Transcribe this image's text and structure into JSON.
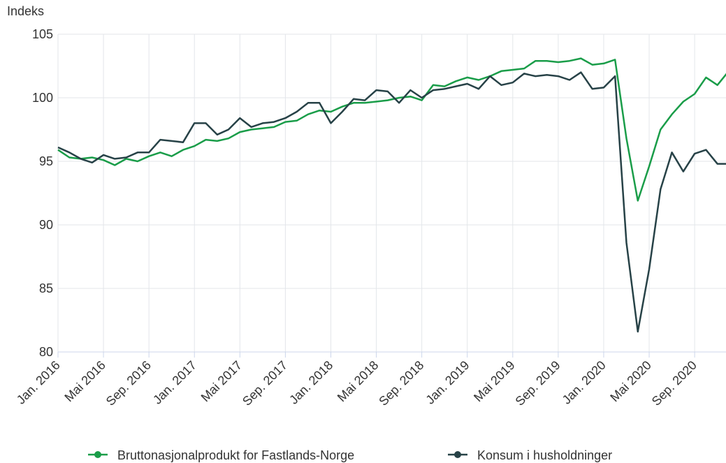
{
  "chart_data": {
    "type": "line",
    "y_label": "Indeks",
    "categories": [
      "Jan. 2016",
      null,
      null,
      null,
      "Mai 2016",
      null,
      null,
      null,
      "Sep. 2016",
      null,
      null,
      null,
      "Jan. 2017",
      null,
      null,
      null,
      "Mai 2017",
      null,
      null,
      null,
      "Sep. 2017",
      null,
      null,
      null,
      "Jan. 2018",
      null,
      null,
      null,
      "Mai 2018",
      null,
      null,
      null,
      "Sep. 2018",
      null,
      null,
      null,
      "Jan. 2019",
      null,
      null,
      null,
      "Mai 2019",
      null,
      null,
      null,
      "Sep. 2019",
      null,
      null,
      null,
      "Jan. 2020",
      null,
      null,
      null,
      "Mai 2020",
      null,
      null,
      null,
      "Sep. 2020",
      null,
      null,
      null
    ],
    "series": [
      {
        "name": "Bruttonasjonalprodukt for Fastlands-Norge",
        "color": "#1a9d49",
        "values": [
          95.9,
          95.3,
          95.2,
          95.3,
          95.1,
          94.7,
          95.2,
          95.0,
          95.4,
          95.7,
          95.4,
          95.9,
          96.2,
          96.7,
          96.6,
          96.8,
          97.3,
          97.5,
          97.6,
          97.7,
          98.1,
          98.2,
          98.7,
          99.0,
          98.9,
          99.3,
          99.6,
          99.6,
          99.7,
          99.8,
          100.0,
          100.1,
          99.8,
          101.0,
          100.9,
          101.3,
          101.6,
          101.4,
          101.7,
          102.1,
          102.2,
          102.3,
          102.9,
          102.9,
          102.8,
          102.9,
          103.1,
          102.6,
          102.7,
          103.0,
          96.8,
          91.9,
          94.6,
          97.5,
          98.7,
          99.7,
          100.3,
          101.6,
          101.0,
          102.1
        ]
      },
      {
        "name": "Konsum i husholdninger",
        "color": "#274247",
        "values": [
          96.1,
          95.7,
          95.2,
          94.9,
          95.5,
          95.2,
          95.3,
          95.7,
          95.7,
          96.7,
          96.6,
          96.5,
          98.0,
          98.0,
          97.1,
          97.5,
          98.4,
          97.7,
          98.0,
          98.1,
          98.4,
          98.9,
          99.6,
          99.6,
          98.0,
          98.9,
          99.9,
          99.8,
          100.6,
          100.5,
          99.6,
          100.6,
          100.0,
          100.6,
          100.7,
          100.9,
          101.1,
          100.7,
          101.7,
          101.0,
          101.2,
          101.9,
          101.7,
          101.8,
          101.7,
          101.4,
          102.0,
          100.7,
          100.8,
          101.7,
          88.6,
          81.6,
          86.5,
          92.8,
          95.7,
          94.2,
          95.6,
          95.9,
          94.8,
          94.8
        ]
      }
    ],
    "ylim": [
      80,
      105
    ],
    "yticks": [
      80,
      85,
      90,
      95,
      100,
      105
    ],
    "grid": true
  }
}
